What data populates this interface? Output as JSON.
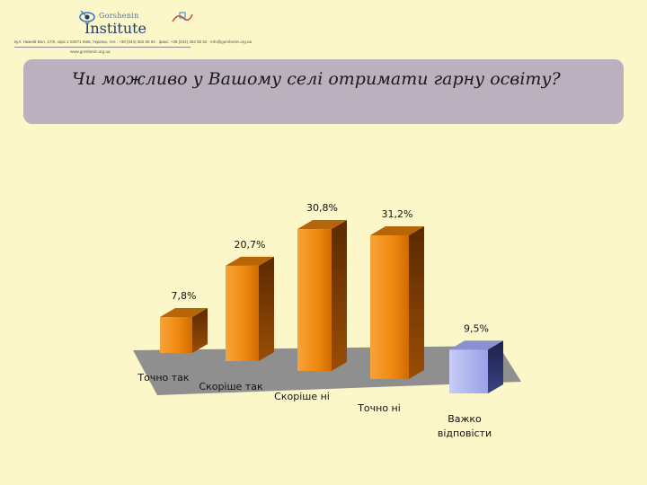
{
  "header": {
    "logo_name": "Gorshenin",
    "logo_word": "Institute",
    "contact_line": "вул. Нижній Вал, 17/8, офіс 1 04071 Київ, Україна, тел.: +38 (044) 462 55 92 · факс: +38 (044) 462 56 52 · info@gorshenin.org.ua",
    "contact_web": "www.gorshenin.org.ua"
  },
  "question": {
    "text": "Чи можливо у Вашому селі отримати гарну освіту?"
  },
  "colors": {
    "background": "#fbf7c8",
    "banner": "#bab0be",
    "bar_orange": "#f08a10",
    "bar_blue": "#aab0ef",
    "floor": "#8f8f8f"
  },
  "chart_data": {
    "type": "bar",
    "title": "",
    "categories": [
      "Точно так",
      "Скоріше так",
      "Скоріше ні",
      "Точно ні",
      "Важко відповісти"
    ],
    "values": [
      7.8,
      20.7,
      30.8,
      31.2,
      9.5
    ],
    "value_labels": [
      "7,8%",
      "20,7%",
      "30,8%",
      "31,2%",
      "9,5%"
    ],
    "unit": "%",
    "ylim": [
      0,
      35
    ],
    "grid": false,
    "legend": "none",
    "bar_colors": [
      "orange",
      "orange",
      "orange",
      "orange",
      "blue"
    ]
  }
}
